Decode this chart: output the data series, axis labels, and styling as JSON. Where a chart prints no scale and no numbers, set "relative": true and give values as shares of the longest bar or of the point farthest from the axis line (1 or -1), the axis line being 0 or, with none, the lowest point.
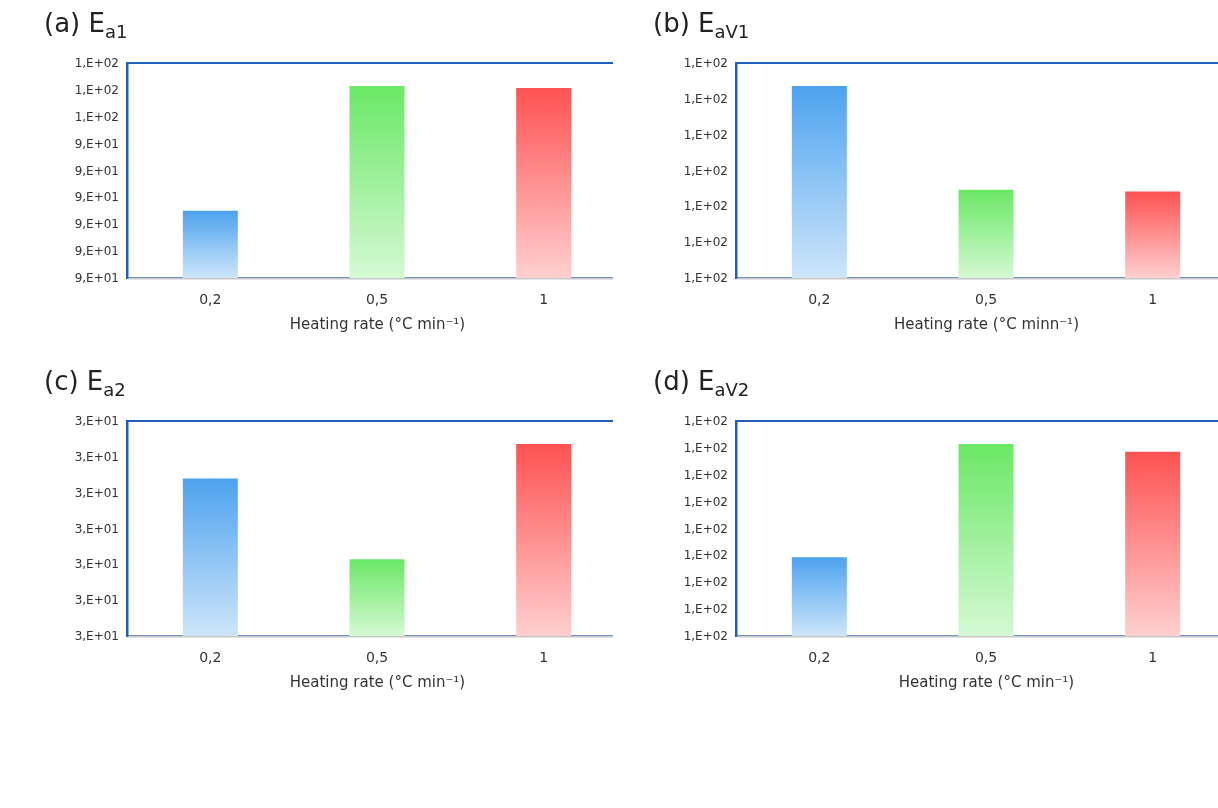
{
  "chart_data": [
    {
      "type": "bar",
      "title": "(a) E$_{a1}$",
      "xlabel": "Heating rate (°C min⁻¹)",
      "categories": [
        "0,2",
        "0,5",
        "1"
      ],
      "values": [
        0.35,
        1,
        0.99
      ],
      "colors": [
        "#4da3ee",
        "#6ae865",
        "#ff5252"
      ],
      "relative": true,
      "annotations": [
        "9,E+01",
        "9,E+01",
        "9,E+01",
        "9,E+01",
        "9,E+01",
        "9,E+01",
        "1,E+02",
        "1,E+02",
        "1,E+02"
      ]
    },
    {
      "type": "bar",
      "title": "(b) E$_{aV1}$",
      "xlabel": "Heating rate (°C minn⁻¹)",
      "categories": [
        "0,2",
        "0,5",
        "1"
      ],
      "values": [
        1,
        0.46,
        0.45
      ],
      "colors": [
        "#4da3ee",
        "#6ae865",
        "#ff5252"
      ],
      "relative": true,
      "annotations": [
        "1,E+02",
        "1,E+02",
        "1,E+02",
        "1,E+02",
        "1,E+02",
        "1,E+02",
        "1,E+02"
      ]
    },
    {
      "type": "bar",
      "title": "(c) E$_{a2}$",
      "xlabel": "Heating rate (°C min⁻¹)",
      "categories": [
        "0,2",
        "0,5",
        "1"
      ],
      "values": [
        0.82,
        0.4,
        1
      ],
      "colors": [
        "#4da3ee",
        "#6ae865",
        "#ff5252"
      ],
      "relative": true,
      "annotations": [
        "3,E+01",
        "3,E+01",
        "3,E+01",
        "3,E+01",
        "3,E+01",
        "3,E+01",
        "3,E+01"
      ]
    },
    {
      "type": "bar",
      "title": "(d) E$_{aV2}$",
      "xlabel": "Heating rate (°C min⁻¹)",
      "categories": [
        "0,2",
        "0,5",
        "1"
      ],
      "values": [
        0.41,
        1,
        0.96
      ],
      "colors": [
        "#4da3ee",
        "#6ae865",
        "#ff5252"
      ],
      "relative": true,
      "annotations": [
        "1,E+02",
        "1,E+02",
        "1,E+02",
        "1,E+02",
        "1,E+02",
        "1,E+02",
        "1,E+02",
        "1,E+02",
        "1,E+02"
      ]
    }
  ]
}
